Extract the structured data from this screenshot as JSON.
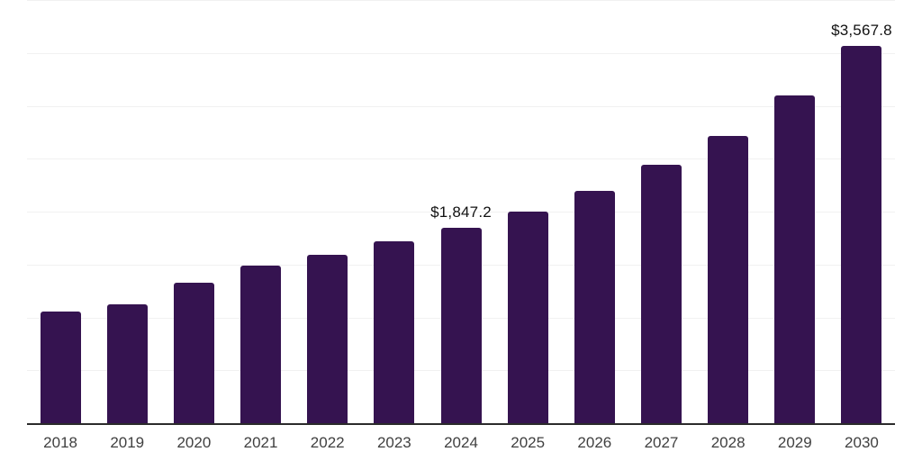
{
  "chart_data": {
    "type": "bar",
    "title": "",
    "xlabel": "",
    "ylabel": "",
    "ylim": [
      0,
      4000
    ],
    "gridline_values": [
      500,
      1000,
      1500,
      2000,
      2500,
      3000,
      3500,
      4000
    ],
    "grid": true,
    "legend": "none",
    "bar_color": "#351350",
    "gridline_color": "#f1f1f1",
    "axis_color": "#2b2b2b",
    "tick_color": "#404040",
    "value_label_color": "#111111",
    "categories": [
      "2018",
      "2019",
      "2020",
      "2021",
      "2022",
      "2023",
      "2024",
      "2025",
      "2026",
      "2027",
      "2028",
      "2029",
      "2030"
    ],
    "values": [
      1055,
      1124,
      1328,
      1489,
      1592,
      1719,
      1847.2,
      1996,
      2196,
      2443,
      2719,
      3098,
      3567.8
    ],
    "points": [
      {
        "year": "2018",
        "value": 1055
      },
      {
        "year": "2019",
        "value": 1124
      },
      {
        "year": "2020",
        "value": 1328
      },
      {
        "year": "2021",
        "value": 1489
      },
      {
        "year": "2022",
        "value": 1592
      },
      {
        "year": "2023",
        "value": 1719
      },
      {
        "year": "2024",
        "value": 1847.2,
        "label": "$1,847.2"
      },
      {
        "year": "2025",
        "value": 1996
      },
      {
        "year": "2026",
        "value": 2196
      },
      {
        "year": "2027",
        "value": 2443
      },
      {
        "year": "2028",
        "value": 2719
      },
      {
        "year": "2029",
        "value": 3098
      },
      {
        "year": "2030",
        "value": 3567.8,
        "label": "$3,567.8"
      }
    ]
  }
}
